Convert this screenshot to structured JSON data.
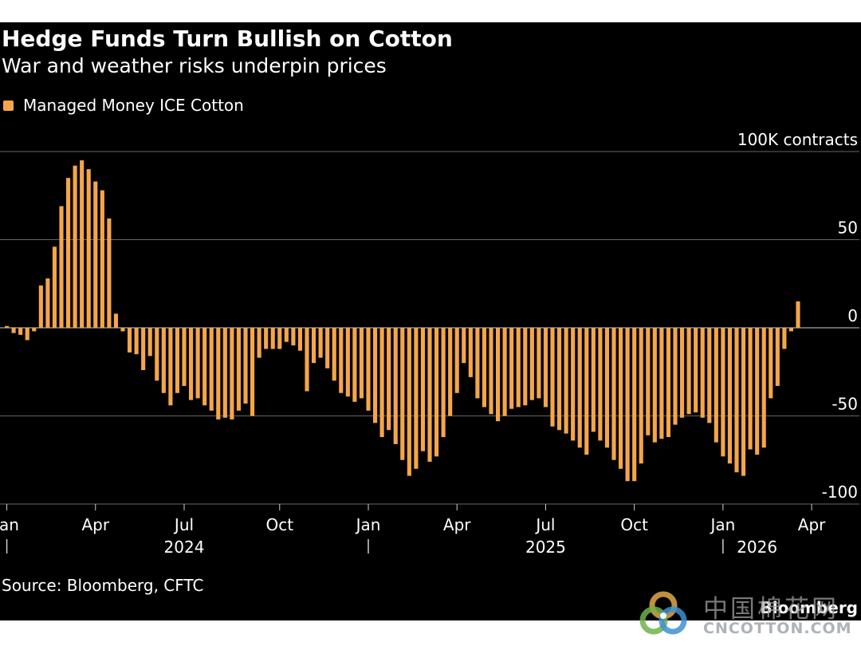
{
  "header": {
    "title": "Hedge Funds Turn Bullish on Cotton",
    "subtitle": "War and weather risks underpin prices"
  },
  "legend": {
    "label": "Managed Money ICE Cotton"
  },
  "footer": {
    "source": "Source: Bloomberg, CFTC",
    "brand": "Bloomberg"
  },
  "watermark": {
    "cn_text": "中国棉花网",
    "en_text": "CNCOTTON.COM"
  },
  "colors": {
    "background": "#000000",
    "bar": "#f4a64a",
    "grid": "#666666",
    "text": "#ffffff"
  },
  "chart_data": {
    "type": "bar",
    "title": "Hedge Funds Turn Bullish on Cotton",
    "subtitle": "War and weather risks underpin prices",
    "unit_label": "100K contracts",
    "series": [
      {
        "name": "Managed Money ICE Cotton",
        "frequency": "weekly",
        "start": "2024-01-02",
        "values": [
          1,
          -3,
          -4,
          -7,
          -2,
          24,
          28,
          46,
          69,
          85,
          92,
          95,
          90,
          83,
          78,
          62,
          8,
          -2,
          -14,
          -15,
          -24,
          -16,
          -30,
          -37,
          -44,
          -37,
          -33,
          -41,
          -40,
          -44,
          -47,
          -52,
          -51,
          -52,
          -47,
          -43,
          -50,
          -17,
          -12,
          -12,
          -12,
          -8,
          -10,
          -13,
          -36,
          -20,
          -17,
          -23,
          -30,
          -37,
          -39,
          -42,
          -40,
          -47,
          -54,
          -62,
          -58,
          -66,
          -75,
          -84,
          -80,
          -70,
          -76,
          -73,
          -62,
          -50,
          -37,
          -20,
          -28,
          -40,
          -45,
          -49,
          -53,
          -50,
          -46,
          -45,
          -44,
          -41,
          -40,
          -45,
          -56,
          -58,
          -60,
          -64,
          -68,
          -72,
          -59,
          -64,
          -68,
          -75,
          -80,
          -87,
          -87,
          -77,
          -61,
          -65,
          -63,
          -62,
          -55,
          -51,
          -49,
          -48,
          -51,
          -54,
          -65,
          -73,
          -77,
          -82,
          -84,
          -69,
          -72,
          -68,
          -40,
          -33,
          -12,
          -2,
          15
        ]
      }
    ],
    "ylim": [
      -100,
      100
    ],
    "yticks": [
      {
        "value": 100,
        "label": "100K contracts"
      },
      {
        "value": 50,
        "label": "50"
      },
      {
        "value": 0,
        "label": "0"
      },
      {
        "value": -50,
        "label": "-50"
      },
      {
        "value": -100,
        "label": "-100"
      }
    ],
    "xticks": [
      {
        "label": "Jan",
        "week": 0
      },
      {
        "label": "Apr",
        "week": 13
      },
      {
        "label": "Jul",
        "week": 26
      },
      {
        "label": "Oct",
        "week": 40
      },
      {
        "label": "Jan",
        "week": 53
      },
      {
        "label": "Apr",
        "week": 66
      },
      {
        "label": "Jul",
        "week": 79
      },
      {
        "label": "Oct",
        "week": 92
      },
      {
        "label": "Jan",
        "week": 105
      },
      {
        "label": "Apr",
        "week": 118
      }
    ],
    "year_labels": [
      {
        "label": "2024",
        "week": 26
      },
      {
        "label": "2025",
        "week": 79
      },
      {
        "label": "2026",
        "week": 110
      }
    ],
    "year_separators": [
      0,
      53,
      105
    ],
    "xlim_weeks": [
      -1,
      125
    ],
    "grid": true
  }
}
